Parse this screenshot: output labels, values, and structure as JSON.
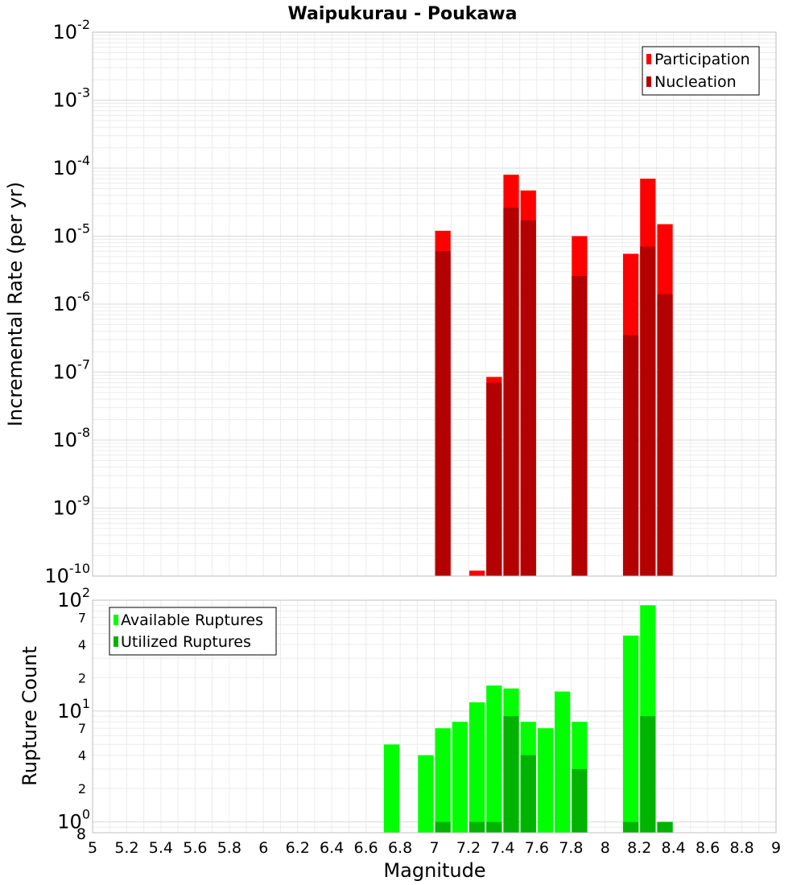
{
  "chart_data": [
    {
      "type": "bar",
      "title": "Waipukurau - Poukawa",
      "xlabel": "",
      "ylabel": "Incremental Rate (per yr)",
      "xlim": [
        5,
        9
      ],
      "ylim": [
        1e-10,
        0.01
      ],
      "yscale": "log",
      "grid": true,
      "legend_position": "top-right",
      "y_tick_labels": [
        {
          "base": "10",
          "exp": "-10"
        },
        {
          "base": "10",
          "exp": "-9"
        },
        {
          "base": "10",
          "exp": "-8"
        },
        {
          "base": "10",
          "exp": "-7"
        },
        {
          "base": "10",
          "exp": "-6"
        },
        {
          "base": "10",
          "exp": "-5"
        },
        {
          "base": "10",
          "exp": "-4"
        },
        {
          "base": "10",
          "exp": "-3"
        },
        {
          "base": "10",
          "exp": "-2"
        }
      ],
      "x": [
        7.05,
        7.25,
        7.35,
        7.45,
        7.55,
        7.85,
        8.15,
        8.25,
        8.35
      ],
      "series": [
        {
          "name": "Participation",
          "color": "#ff0000",
          "values": [
            1.2e-05,
            1.2e-10,
            8.5e-08,
            8e-05,
            4.7e-05,
            1e-05,
            5.5e-06,
            7e-05,
            1.5e-05
          ]
        },
        {
          "name": "Nucleation",
          "color": "#b30000",
          "values": [
            6e-06,
            0,
            7e-08,
            2.6e-05,
            1.7e-05,
            2.6e-06,
            3.5e-07,
            7e-06,
            1.4e-06
          ]
        }
      ]
    },
    {
      "type": "bar",
      "title": "",
      "xlabel": "Magnitude",
      "ylabel": "Rupture Count",
      "xlim": [
        5,
        9
      ],
      "ylim": [
        0.8,
        100
      ],
      "yscale": "log",
      "grid": true,
      "legend_position": "top-left",
      "x_tick_labels": [
        "5",
        "5.2",
        "5.4",
        "5.6",
        "5.8",
        "6",
        "6.2",
        "6.4",
        "6.6",
        "6.8",
        "7",
        "7.2",
        "7.4",
        "7.6",
        "7.8",
        "8",
        "8.2",
        "8.4",
        "8.6",
        "8.8",
        "9"
      ],
      "y_major_labels": [
        {
          "base": "10",
          "exp": "0"
        },
        {
          "base": "10",
          "exp": "1"
        },
        {
          "base": "10",
          "exp": "2"
        }
      ],
      "y_bottom_label": "8",
      "y_minor_labels": [
        {
          "value": 2,
          "label": "2"
        },
        {
          "value": 4,
          "label": "4"
        },
        {
          "value": 7,
          "label": "7"
        },
        {
          "value": 20,
          "label": "2"
        },
        {
          "value": 40,
          "label": "4"
        },
        {
          "value": 70,
          "label": "7"
        }
      ],
      "x": [
        6.75,
        6.95,
        7.05,
        7.15,
        7.25,
        7.35,
        7.45,
        7.55,
        7.65,
        7.75,
        7.85,
        8.15,
        8.25,
        8.35
      ],
      "series": [
        {
          "name": "Available Ruptures",
          "color": "#00ff00",
          "values": [
            5,
            4,
            7,
            8,
            12,
            17,
            16,
            8,
            7,
            15,
            8,
            48,
            90,
            1
          ]
        },
        {
          "name": "Utilized Ruptures",
          "color": "#00b300",
          "values": [
            0,
            0,
            1,
            0,
            1,
            1,
            9,
            4,
            0,
            0,
            3,
            1,
            9,
            1
          ]
        }
      ]
    }
  ]
}
